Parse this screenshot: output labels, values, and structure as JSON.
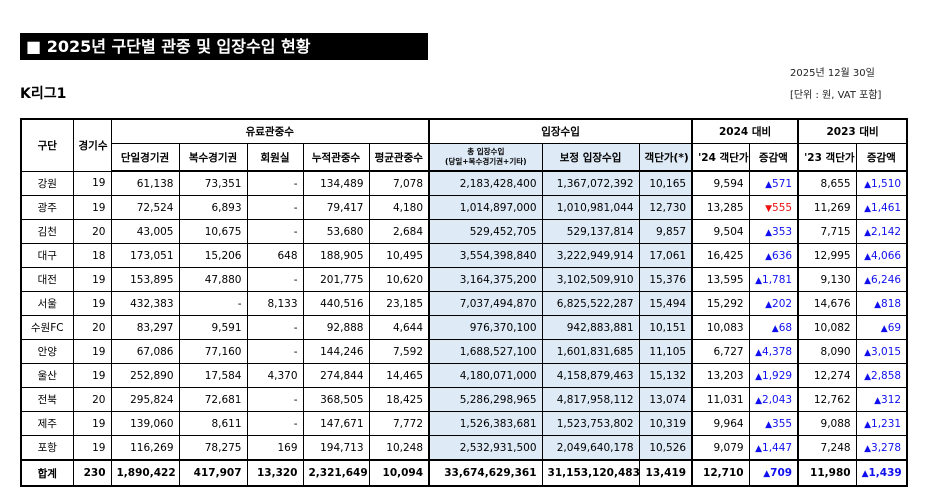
{
  "title": "■ 2025년 구단별 관중 및 입장수입 현황",
  "date": "2025년 12월 30일",
  "unit": "[단위 : 원, VAT 포함]",
  "league": "K리그1",
  "headers": {
    "club": "구단",
    "games": "경기수",
    "paid": "유료관중수",
    "revenue": "입장수입",
    "vs2024": "2024 대비",
    "vs2023": "2023 대비",
    "single": "단일경기권",
    "multi": "복수경기권",
    "member": "회원실",
    "cumulative": "누적관중수",
    "average": "평균관중수",
    "total_rev": "총 입장수입",
    "total_rev_sub": "(당일+복수경기권+기타)",
    "adj_rev": "보정 입장수입",
    "per_cap": "객단가(*)",
    "per24": "'24 객단가",
    "chg24": "증감액",
    "per23": "'23 객단가",
    "chg23": "증감액"
  },
  "rows": [
    [
      "강원",
      "19",
      "61,138",
      "73,351",
      "-",
      "134,489",
      "7,078",
      "2,183,428,400",
      "1,367,072,392",
      "10,165",
      "9,594",
      {
        "dir": "up",
        "v": "571"
      },
      "8,655",
      {
        "dir": "up",
        "v": "1,510"
      }
    ],
    [
      "광주",
      "19",
      "72,524",
      "6,893",
      "-",
      "79,417",
      "4,180",
      "1,014,897,000",
      "1,010,981,044",
      "12,730",
      "13,285",
      {
        "dir": "down",
        "v": "555"
      },
      "11,269",
      {
        "dir": "up",
        "v": "1,461"
      }
    ],
    [
      "김천",
      "20",
      "43,005",
      "10,675",
      "-",
      "53,680",
      "2,684",
      "529,452,705",
      "529,137,814",
      "9,857",
      "9,504",
      {
        "dir": "up",
        "v": "353"
      },
      "7,715",
      {
        "dir": "up",
        "v": "2,142"
      }
    ],
    [
      "대구",
      "18",
      "173,051",
      "15,206",
      "648",
      "188,905",
      "10,495",
      "3,554,398,840",
      "3,222,949,914",
      "17,061",
      "16,425",
      {
        "dir": "up",
        "v": "636"
      },
      "12,995",
      {
        "dir": "up",
        "v": "4,066"
      }
    ],
    [
      "대전",
      "19",
      "153,895",
      "47,880",
      "-",
      "201,775",
      "10,620",
      "3,164,375,200",
      "3,102,509,910",
      "15,376",
      "13,595",
      {
        "dir": "up",
        "v": "1,781"
      },
      "9,130",
      {
        "dir": "up",
        "v": "6,246"
      }
    ],
    [
      "서울",
      "19",
      "432,383",
      "-",
      "8,133",
      "440,516",
      "23,185",
      "7,037,494,870",
      "6,825,522,287",
      "15,494",
      "15,292",
      {
        "dir": "up",
        "v": "202"
      },
      "14,676",
      {
        "dir": "up",
        "v": "818"
      }
    ],
    [
      "수원FC",
      "20",
      "83,297",
      "9,591",
      "-",
      "92,888",
      "4,644",
      "976,370,100",
      "942,883,881",
      "10,151",
      "10,083",
      {
        "dir": "up",
        "v": "68"
      },
      "10,082",
      {
        "dir": "up",
        "v": "69"
      }
    ],
    [
      "안양",
      "19",
      "67,086",
      "77,160",
      "-",
      "144,246",
      "7,592",
      "1,688,527,100",
      "1,601,831,685",
      "11,105",
      "6,727",
      {
        "dir": "up",
        "v": "4,378"
      },
      "8,090",
      {
        "dir": "up",
        "v": "3,015"
      }
    ],
    [
      "울산",
      "19",
      "252,890",
      "17,584",
      "4,370",
      "274,844",
      "14,465",
      "4,180,071,000",
      "4,158,879,463",
      "15,132",
      "13,203",
      {
        "dir": "up",
        "v": "1,929"
      },
      "12,274",
      {
        "dir": "up",
        "v": "2,858"
      }
    ],
    [
      "전북",
      "20",
      "295,824",
      "72,681",
      "-",
      "368,505",
      "18,425",
      "5,286,298,965",
      "4,817,958,112",
      "13,074",
      "11,031",
      {
        "dir": "up",
        "v": "2,043"
      },
      "12,762",
      {
        "dir": "up",
        "v": "312"
      }
    ],
    [
      "제주",
      "19",
      "139,060",
      "8,611",
      "-",
      "147,671",
      "7,772",
      "1,526,383,681",
      "1,523,753,802",
      "10,319",
      "9,964",
      {
        "dir": "up",
        "v": "355"
      },
      "9,088",
      {
        "dir": "up",
        "v": "1,231"
      }
    ],
    [
      "포항",
      "19",
      "116,269",
      "78,275",
      "169",
      "194,713",
      "10,248",
      "2,532,931,500",
      "2,049,640,178",
      "10,526",
      "9,079",
      {
        "dir": "up",
        "v": "1,447"
      },
      "7,248",
      {
        "dir": "up",
        "v": "3,278"
      }
    ]
  ],
  "total": [
    "합계",
    "230",
    "1,890,422",
    "417,907",
    "13,320",
    "2,321,649",
    "10,094",
    "33,674,629,361",
    "31,153,120,483",
    "13,419",
    "12,710",
    {
      "dir": "up",
      "v": "709"
    },
    "11,980",
    {
      "dir": "up",
      "v": "1,439"
    }
  ],
  "colors": {
    "up": "#1010ee",
    "down": "#ee1010",
    "highlight": "#deeaf6"
  }
}
